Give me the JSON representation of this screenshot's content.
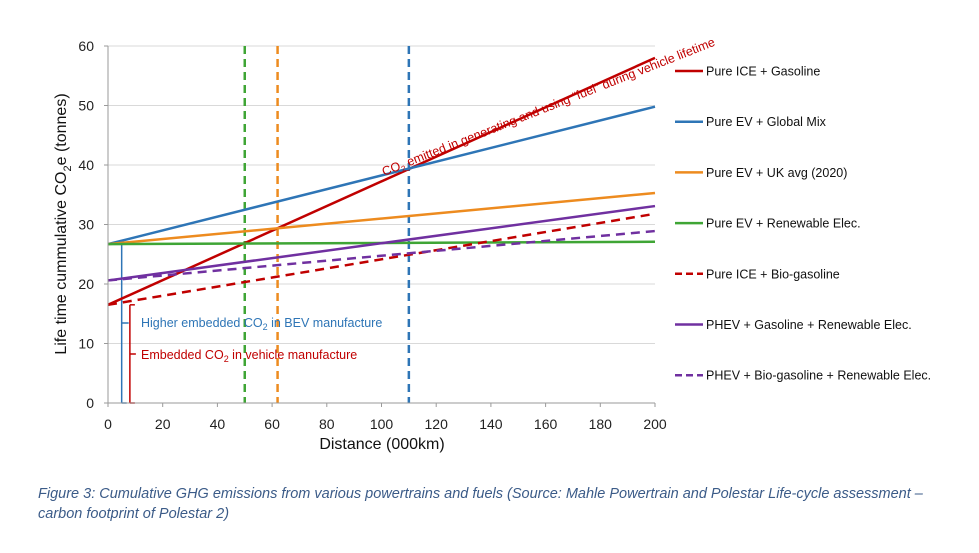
{
  "chart_data": {
    "type": "line",
    "title": "",
    "xlabel": "Distance (000km)",
    "ylabel_parts": [
      "Life time cummulative CO",
      "2",
      "e (tonnes)"
    ],
    "xlim": [
      0,
      200
    ],
    "ylim": [
      0,
      60
    ],
    "xticks": [
      0,
      20,
      40,
      60,
      80,
      100,
      120,
      140,
      160,
      180,
      200
    ],
    "yticks": [
      0,
      10,
      20,
      30,
      40,
      50,
      60
    ],
    "grid": "horizontal",
    "legend_position": "right",
    "series": [
      {
        "name": "Pure ICE + Gasoline",
        "color": "#c00000",
        "dash": false,
        "x": [
          0,
          200
        ],
        "y": [
          16.5,
          58
        ]
      },
      {
        "name": "Pure EV + Global Mix",
        "color": "#2e75b6",
        "dash": false,
        "x": [
          0,
          200
        ],
        "y": [
          26.7,
          49.8
        ]
      },
      {
        "name": "Pure EV + UK avg  (2020)",
        "color": "#ed8b1f",
        "dash": false,
        "x": [
          0,
          200
        ],
        "y": [
          26.7,
          35.3
        ]
      },
      {
        "name": "Pure EV + Renewable Elec.",
        "color": "#3fa535",
        "dash": false,
        "x": [
          0,
          200
        ],
        "y": [
          26.7,
          27.1
        ]
      },
      {
        "name": "Pure ICE + Bio-gasoline",
        "color": "#c00000",
        "dash": true,
        "x": [
          0,
          200
        ],
        "y": [
          16.5,
          31.8
        ]
      },
      {
        "name": "PHEV + Gasoline + Renewable Elec.",
        "color": "#7030a0",
        "dash": false,
        "x": [
          0,
          200
        ],
        "y": [
          20.6,
          33.1
        ]
      },
      {
        "name": "PHEV + Bio-gasoline + Renewable Elec.",
        "color": "#7030a0",
        "dash": true,
        "x": [
          0,
          200
        ],
        "y": [
          20.6,
          28.9
        ]
      }
    ],
    "vertical_lines": [
      {
        "x": 50,
        "color": "#3fa535"
      },
      {
        "x": 62,
        "color": "#ed8b1f"
      },
      {
        "x": 110,
        "color": "#2e75b6"
      }
    ],
    "annotations": {
      "fuel_parts": [
        "CO",
        "2",
        " emitted in generating and using “fuel” during vehicle lifetime"
      ],
      "bev_parts": [
        "Higher embedded CO",
        "2",
        " in BEV manufacture"
      ],
      "vehicle_parts": [
        "Embedded  CO",
        "2",
        " in vehicle manufacture"
      ]
    },
    "embedded_brackets": [
      {
        "x": 5,
        "y": [
          0,
          26.7
        ],
        "color": "#2e75b6"
      },
      {
        "x": 8,
        "y": [
          0,
          16.5
        ],
        "color": "#c00000"
      }
    ]
  },
  "caption": "Figure 3: Cumulative GHG emissions from various powertrains and fuels (Source: Mahle Powertrain and Polestar Life-cycle assessment – carbon footprint of Polestar 2)"
}
